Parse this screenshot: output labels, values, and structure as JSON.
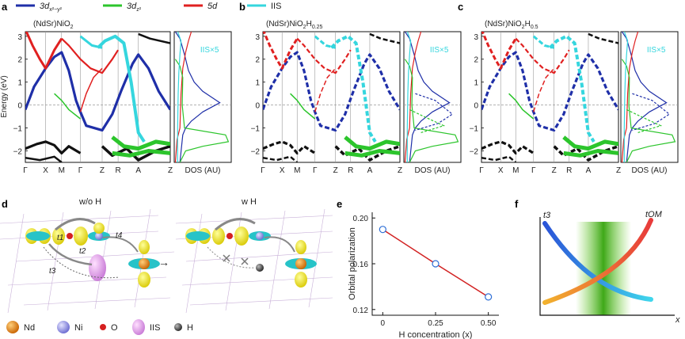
{
  "legend": {
    "items": [
      {
        "label": "3d",
        "sub": "x²−y²",
        "color": "#1f2fa8"
      },
      {
        "label": "3d",
        "sub": "z²",
        "color": "#2cc52c"
      },
      {
        "label": "5d",
        "sub": "",
        "color": "#e02020"
      },
      {
        "label": "IIS",
        "sub": "",
        "color": "#35d6de"
      }
    ]
  },
  "colors": {
    "black": "#111111",
    "blue": "#1f2fa8",
    "green": "#2cc52c",
    "red": "#e02020",
    "cyan": "#35d6de"
  },
  "band_panels": [
    {
      "letter": "a",
      "title_pre": "(NdSr)NiO",
      "title_sub1": "2",
      "title_mid": "",
      "title_sub2": "",
      "iis_label": "IIS×5",
      "dos_label": "DOS (AU)"
    },
    {
      "letter": "b",
      "title_pre": "(NdSr)NiO",
      "title_sub1": "2",
      "title_mid": "H",
      "title_sub2": "0.25",
      "iis_label": "IIS×5",
      "dos_label": "DOS (AU)"
    },
    {
      "letter": "c",
      "title_pre": "(NdSr)NiO",
      "title_sub1": "2",
      "title_mid": "H",
      "title_sub2": "0.5",
      "iis_label": "IIS×5",
      "dos_label": "DOS (AU)"
    }
  ],
  "energy_axis": {
    "label": "Energy (eV)",
    "ticks": [
      "3",
      "2",
      "1",
      "0",
      "−1",
      "−2"
    ]
  },
  "kpath": [
    "Γ",
    "X",
    "M",
    "Γ",
    "Z",
    "R",
    "A",
    "Z"
  ],
  "panel_d": {
    "letter": "d",
    "left_title": "w/o H",
    "right_title": "w H",
    "hopping": [
      "t1",
      "t2",
      "t3",
      "t4"
    ],
    "arrow": "→",
    "legend": [
      "Nd",
      "Ni",
      "O",
      "IIS",
      "H"
    ]
  },
  "panel_e": {
    "letter": "e"
  },
  "panel_f": {
    "letter": "f",
    "left_label": "t3",
    "right_label": "tOM",
    "x_label": "x"
  },
  "chart_data": [
    {
      "type": "line",
      "title": "",
      "xlabel": "H concentration (x)",
      "ylabel": "Orbital polarization",
      "x": [
        0,
        0.25,
        0.5
      ],
      "y": [
        0.19,
        0.16,
        0.131
      ],
      "xlim": [
        -0.05,
        0.55
      ],
      "ylim": [
        0.115,
        0.205
      ],
      "xticks": [
        "0",
        "0.25",
        "0.50"
      ],
      "yticks": [
        "0.20",
        "0.16",
        "0.12"
      ],
      "line_color": "#d22222",
      "marker_color": "#2e6fd6"
    },
    {
      "type": "line",
      "title": "",
      "xlabel": "x",
      "ylabel": "",
      "series": [
        {
          "name": "t3",
          "shape": "decreasing",
          "colors": [
            "#2b55d8",
            "#3fd6ec"
          ]
        },
        {
          "name": "tOM",
          "shape": "increasing",
          "colors": [
            "#f2b22e",
            "#e83b3b"
          ]
        }
      ],
      "shaded_region": "green band near crossing"
    }
  ]
}
